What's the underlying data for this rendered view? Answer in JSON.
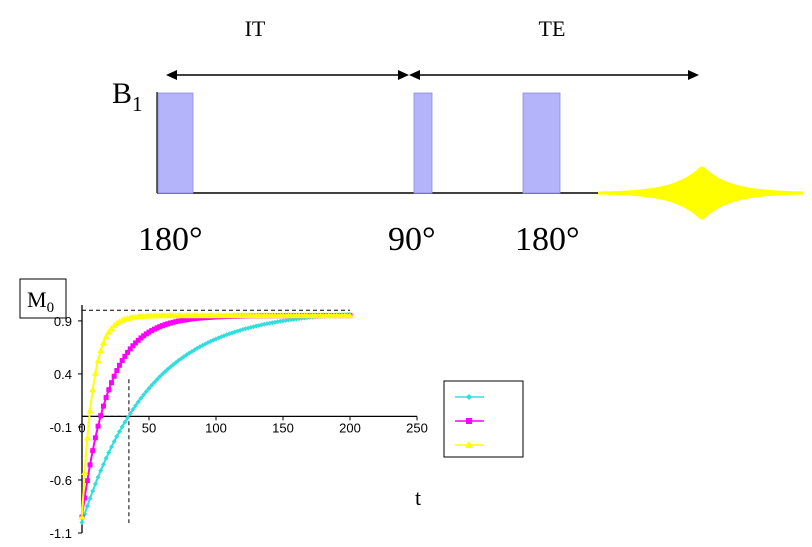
{
  "sequence": {
    "interval_labels": {
      "it": "IT",
      "te": "TE"
    },
    "b1_label": "B",
    "b1_subscript": "1",
    "pulse_labels": [
      "180°",
      "90°",
      "180°"
    ],
    "colors": {
      "pulse_fill": "#b4b4fa",
      "pulse_stroke": "#8a8ae0",
      "echo": "#ffff00"
    }
  },
  "chart_data": {
    "type": "scatter",
    "ylabel": "M",
    "ylabel_subscript": "0",
    "xlabel": "t",
    "xlim": [
      0,
      250
    ],
    "ylim": [
      -1.1,
      1.05
    ],
    "xticks": [
      0,
      50,
      100,
      150,
      200,
      250
    ],
    "yticks": [
      0.9,
      0.4,
      -0.1,
      -0.6,
      -1.1
    ],
    "ytick_labels": [
      "0.9",
      "0.4",
      "-0.1",
      "-0.6",
      "-1.1"
    ],
    "reference_level": 1.0,
    "guide_x": 35,
    "legend": {
      "placement": "right"
    },
    "series": [
      {
        "marker": "diamond",
        "color": "#33dddd",
        "amplitude": 1.0,
        "time_constant": 50,
        "x_max": 200
      },
      {
        "marker": "square",
        "color": "#ff00ff",
        "amplitude": 0.95,
        "time_constant": 20,
        "x_max": 200
      },
      {
        "marker": "triangle",
        "color": "#ffff00",
        "amplitude": 0.95,
        "time_constant": 8,
        "x_max": 200
      }
    ]
  }
}
